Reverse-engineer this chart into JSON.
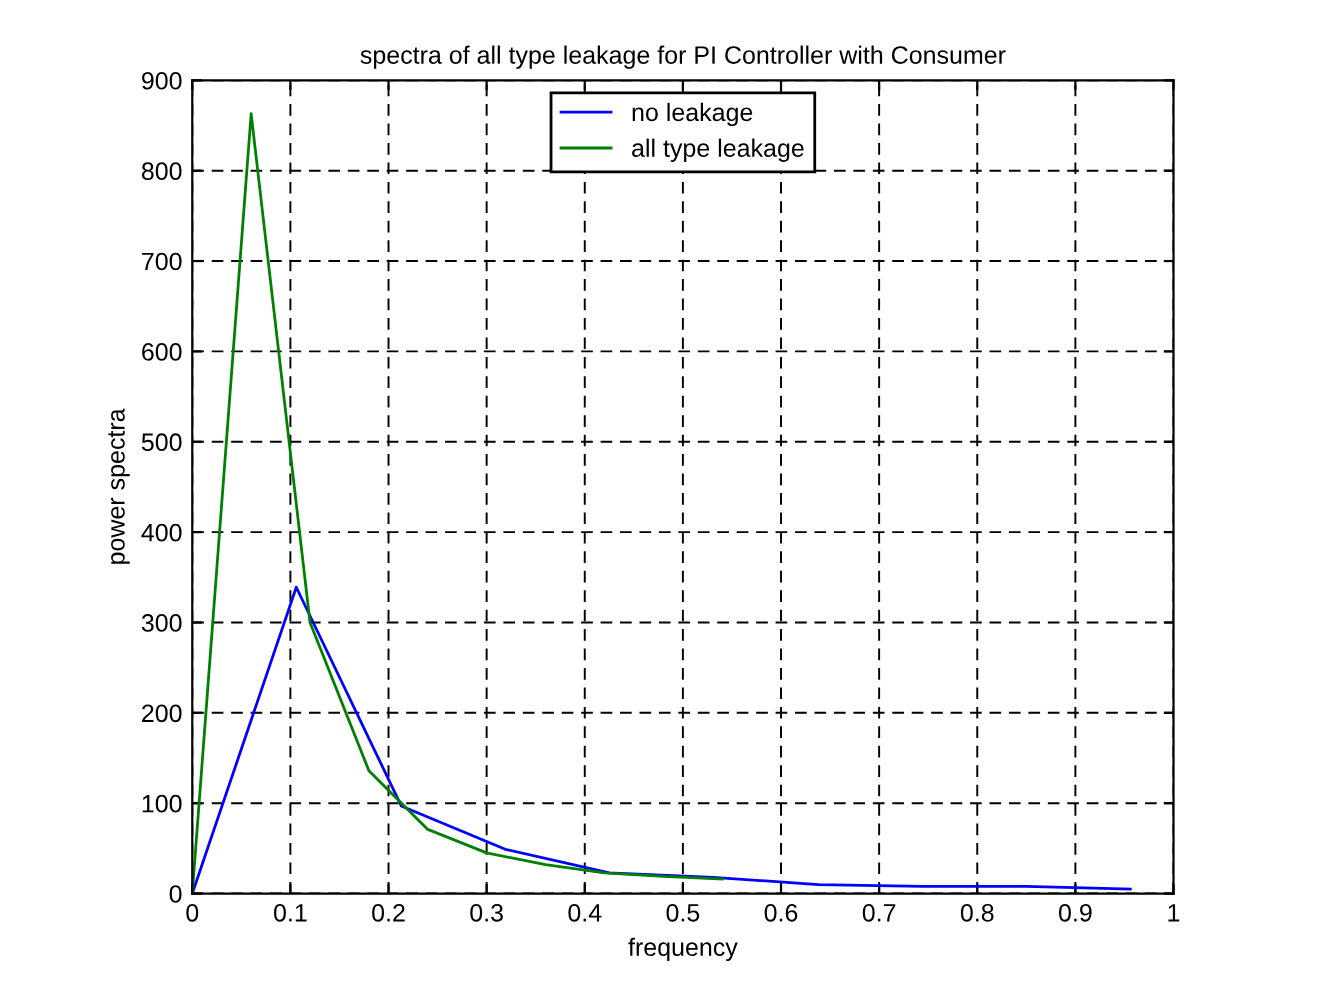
{
  "chart_data": {
    "type": "line",
    "title": "spectra of all type leakage for PI Controller with Consumer",
    "xlabel": "frequency",
    "ylabel": "power spectra",
    "series": [
      {
        "name": "no leakage",
        "color": "#0000ff",
        "x": [
          0,
          0.106,
          0.213,
          0.319,
          0.425,
          0.531,
          0.638,
          0.744,
          0.85,
          0.956
        ],
        "values": [
          0,
          339,
          97,
          49,
          23,
          18,
          10,
          8,
          8,
          5
        ]
      },
      {
        "name": "all type leakage",
        "color": "#008000",
        "x": [
          0,
          0.06,
          0.12,
          0.18,
          0.24,
          0.3,
          0.36,
          0.42,
          0.48,
          0.54
        ],
        "values": [
          0,
          863,
          300,
          136,
          71,
          45,
          32,
          23,
          19,
          16
        ]
      }
    ],
    "xlim": [
      0,
      1
    ],
    "xticks": [
      0,
      0.1,
      0.2,
      0.3,
      0.4,
      0.5,
      0.6,
      0.7,
      0.8,
      0.9,
      1
    ],
    "ylim": [
      0,
      900
    ],
    "yticks": [
      0,
      100,
      200,
      300,
      400,
      500,
      600,
      700,
      800,
      900
    ],
    "grid": true,
    "legend": "top",
    "line_style": "solid"
  }
}
